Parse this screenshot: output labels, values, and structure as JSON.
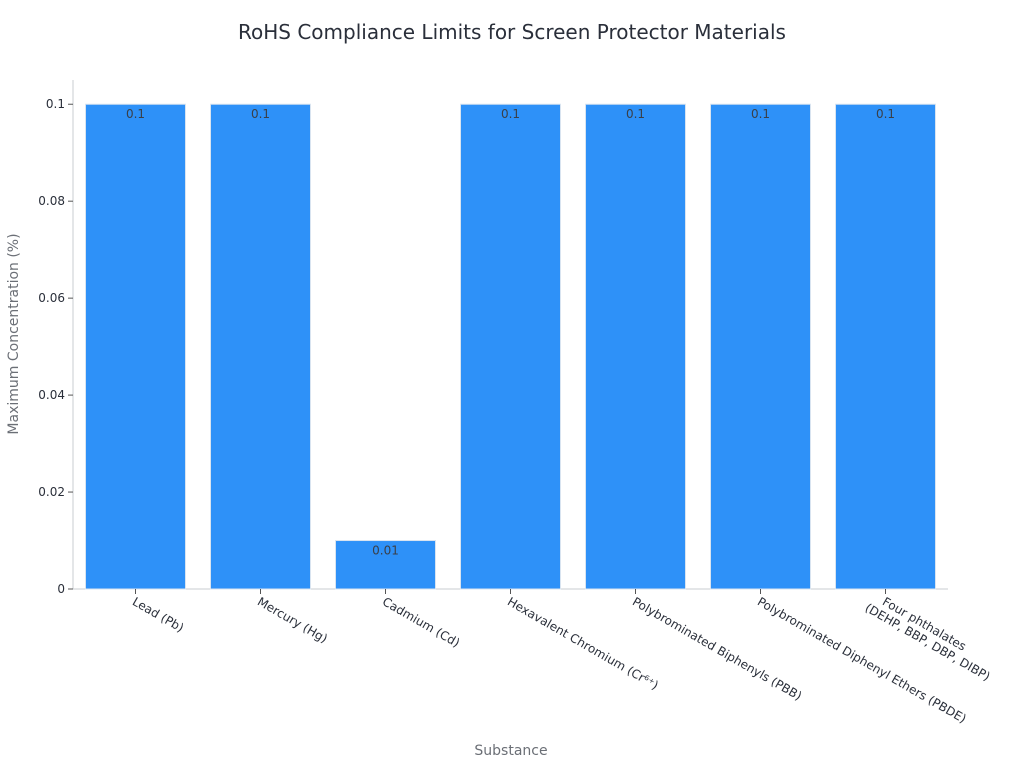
{
  "chart_data": {
    "type": "bar",
    "title": "RoHS Compliance Limits for Screen Protector Materials",
    "xlabel": "Substance",
    "ylabel": "Maximum Concentration (%)",
    "categories": [
      [
        "Lead (Pb)"
      ],
      [
        "Mercury (Hg)"
      ],
      [
        "Cadmium (Cd)"
      ],
      [
        "Hexavalent Chromium (Cr⁶⁺)"
      ],
      [
        "Polybrominated Biphenyls (PBB)"
      ],
      [
        "Polybrominated Diphenyl Ethers (PBDE)"
      ],
      [
        "Four phthalates",
        "(DEHP, BBP, DBP, DIBP)"
      ]
    ],
    "values": [
      0.1,
      0.1,
      0.01,
      0.1,
      0.1,
      0.1,
      0.1
    ],
    "data_labels": [
      "0.1",
      "0.1",
      "0.01",
      "0.1",
      "0.1",
      "0.1",
      "0.1"
    ],
    "yticks": [
      0,
      0.02,
      0.04,
      0.06,
      0.08,
      0.1
    ],
    "ytick_labels": [
      "0",
      "0.02",
      "0.04",
      "0.06",
      "0.08",
      "0.1"
    ],
    "ylim": [
      0,
      0.105
    ],
    "grid": false,
    "legend": "none",
    "colors": {
      "bar": "#2e91f8",
      "bar_edge": "#d9e4f0",
      "axis": "#c9ccd1",
      "text": "#2a2f3a"
    }
  }
}
